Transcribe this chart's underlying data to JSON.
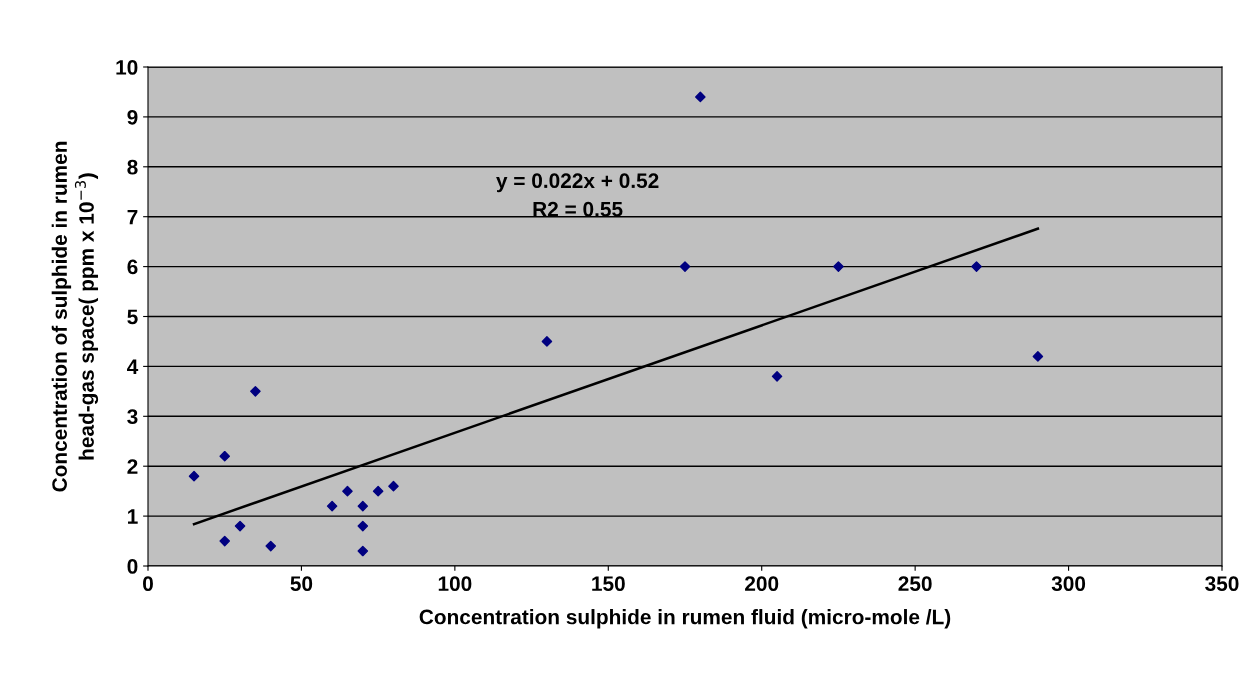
{
  "chart_data": {
    "type": "scatter",
    "xlabel": "Concentration sulphide in rumen fluid (micro-mole /L)",
    "ylabel": "Concentration of sulphide in rumen\nhead-gas space( ppm x 10$^{−3}$)",
    "series": [
      {
        "color": "#000080",
        "marker": "diamond",
        "x": [
          15,
          25,
          25,
          30,
          35,
          40,
          60,
          65,
          70,
          70,
          70,
          75,
          80,
          130,
          175,
          180,
          205,
          225,
          270,
          290
        ],
        "values": [
          1.8,
          2.2,
          0.5,
          0.8,
          3.5,
          0.4,
          1.2,
          1.5,
          1.2,
          0.8,
          0.3,
          1.5,
          1.6,
          4.5,
          6.0,
          9.4,
          3.8,
          6.0,
          6.0,
          4.2
        ]
      },
      {
        "type": "line",
        "color": "#000000",
        "marker": "none",
        "x": [
          15,
          290
        ],
        "values": [
          0.84,
          6.76
        ]
      }
    ],
    "annotations": [
      "y = 0.022x + 0.52\nR2 = 0.55"
    ],
    "xlim": [
      0,
      350
    ],
    "xticks": [
      0,
      50,
      100,
      150,
      200,
      250,
      300,
      350
    ],
    "ylim": [
      0,
      10
    ],
    "yticks": [
      0,
      1,
      2,
      3,
      4,
      5,
      6,
      7,
      8,
      9,
      10
    ],
    "grid": "y",
    "legend": false
  }
}
